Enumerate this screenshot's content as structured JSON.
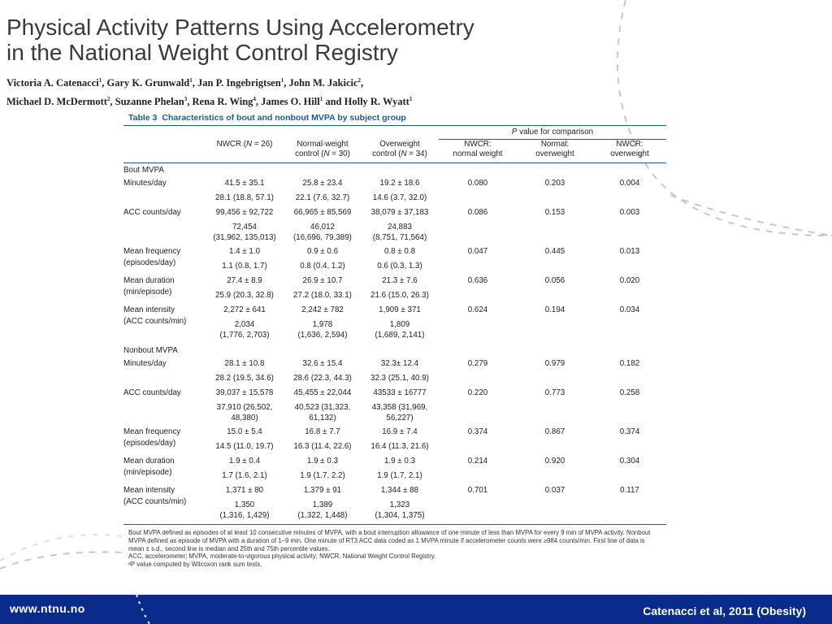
{
  "slide": {
    "title_line1": "Physical Activity Patterns Using Accelerometry",
    "title_line2": "in the National Weight Control Registry",
    "authors_line1": [
      {
        "name": "Victoria A. Catenacci",
        "sup": "1"
      },
      {
        "name": ", Gary K. Grunwald",
        "sup": "1"
      },
      {
        "name": ", Jan P. Ingebrigtsen",
        "sup": "1"
      },
      {
        "name": ", John M. Jakicic",
        "sup": "2"
      },
      {
        "name": ",",
        "sup": ""
      }
    ],
    "authors_line2": [
      {
        "name": "Michael D. McDermott",
        "sup": "2"
      },
      {
        "name": ", Suzanne Phelan",
        "sup": "3"
      },
      {
        "name": ", Rena R. Wing",
        "sup": "4"
      },
      {
        "name": ", James O. Hill",
        "sup": "1"
      },
      {
        "name": " and Holly R. Wyatt",
        "sup": "1"
      }
    ]
  },
  "table": {
    "label": "Table 3",
    "caption": "Characteristics of bout and nonbout MVPA by subject group",
    "pcomp_italic": "P",
    "pcomp_rest": " value for comparison",
    "headers": {
      "nwcr": [
        "NWCR (",
        "N",
        " = 26)"
      ],
      "normal": [
        "Normal-weight",
        "control (",
        "N",
        " = 30)"
      ],
      "over": [
        "Overweight",
        "control (",
        "N",
        " = 34)"
      ],
      "p1": [
        "NWCR:",
        "normal weight"
      ],
      "p2": [
        "Normal:",
        "overweight"
      ],
      "p3": [
        "NWCR:",
        "overweight"
      ]
    },
    "groups": [
      {
        "name": "Bout MVPA",
        "rows": [
          {
            "label": [
              "Minutes/day"
            ],
            "l1": [
              "41.5 ± 35.1",
              "25.8 ± 23.4",
              "19.2 ± 18.6"
            ],
            "p": [
              "0.080",
              "0.203",
              "0.004"
            ],
            "l2": [
              "28.1 (18.8, 57.1)",
              "22.1 (7.6, 32.7)",
              "14.6 (3.7, 32.0)"
            ]
          },
          {
            "label": [
              "ACC counts/day"
            ],
            "l1": [
              "99,456 ± 92,722",
              "66,965 ± 85,569",
              "38,079 ± 37,183"
            ],
            "p": [
              "0.086",
              "0.153",
              "0.003"
            ],
            "l2": [
              "72,454\n(31,962, 135,013)",
              "46,012\n(16,696, 79,389)",
              "24,883\n(8,751, 71,564)"
            ]
          },
          {
            "label": [
              "Mean frequency",
              "(episodes/day)"
            ],
            "l1": [
              "1.4 ± 1.0",
              "0.9 ± 0.6",
              "0.8 ± 0.8"
            ],
            "p": [
              "0.047",
              "0.445",
              "0.013"
            ],
            "l2": [
              "1.1 (0.8, 1.7)",
              "0.8 (0.4, 1.2)",
              "0.6 (0.3, 1.3)"
            ]
          },
          {
            "label": [
              "Mean duration",
              "(min/episode)"
            ],
            "l1": [
              "27.4 ± 8.9",
              "26.9 ± 10.7",
              "21.3 ± 7.6"
            ],
            "p": [
              "0.636",
              "0.056",
              "0.020"
            ],
            "l2": [
              "25.9 (20.3, 32.8)",
              "27.2 (18.0, 33.1)",
              "21.6 (15.0, 26.3)"
            ]
          },
          {
            "label": [
              "Mean intensity",
              "(ACC counts/min)"
            ],
            "l1": [
              "2,272 ± 641",
              "2,242 ± 782",
              "1,909 ± 371"
            ],
            "p": [
              "0.624",
              "0.194",
              "0.034"
            ],
            "l2": [
              "2,034\n(1,776, 2,703)",
              "1,978\n(1,636, 2,594)",
              "1,809\n(1,689, 2,141)"
            ]
          }
        ]
      },
      {
        "name": "Nonbout MVPA",
        "rows": [
          {
            "label": [
              "Minutes/day"
            ],
            "l1": [
              "28.1 ± 10.8",
              "32.6 ± 15.4",
              "32.3± 12.4"
            ],
            "p": [
              "0.279",
              "0.979",
              "0.182"
            ],
            "l2": [
              "28.2 (19.5, 34.6)",
              "28.6 (22.3, 44.3)",
              "32.3 (25.1, 40.9)"
            ]
          },
          {
            "label": [
              "ACC counts/day"
            ],
            "l1": [
              "39,037 ± 15,578",
              "45,455 ± 22,044",
              "43533 ± 16777"
            ],
            "p": [
              "0.220",
              "0.773",
              "0.258"
            ],
            "l2": [
              "37,910 (26,502,\n48,380)",
              "40,523 (31,323,\n61,132)",
              "43,358 (31,969,\n56,227)"
            ]
          },
          {
            "label": [
              "Mean frequency",
              "(episodes/day)"
            ],
            "l1": [
              "15.0 ± 5.4",
              "16.8 ± 7.7",
              "16.9 ± 7.4"
            ],
            "p": [
              "0.374",
              "0.867",
              "0.374"
            ],
            "l2": [
              "14.5 (11.0, 19.7)",
              "16.3 (11.4, 22.6)",
              "16.4 (11.3, 21.6)"
            ]
          },
          {
            "label": [
              "Mean duration",
              "(min/episode)"
            ],
            "l1": [
              "1.9 ± 0.4",
              "1.9 ± 0.3",
              "1.9 ± 0.3"
            ],
            "p": [
              "0.214",
              "0.920",
              "0.304"
            ],
            "l2": [
              "1.7 (1.6, 2.1)",
              "1.9 (1.7, 2.2)",
              "1.9 (1.7, 2.1)"
            ]
          },
          {
            "label": [
              "Mean intensity",
              "(ACC counts/min)"
            ],
            "l1": [
              "1,371 ± 80",
              "1,379 ± 91",
              "1,344 ± 88"
            ],
            "p": [
              "0.701",
              "0.037",
              "0.117"
            ],
            "l2": [
              "1,350\n(1,316, 1,429)",
              "1,389\n(1,322, 1,448)",
              "1,323\n(1,304, 1,375)"
            ]
          }
        ]
      }
    ],
    "footnotes": [
      "Bout MVPA defined as episodes of at least 10 consecutive minutes of MVPA, with a bout interruption allowance of one minute of less than MVPA for every 9 min of MVPA activity. Nonbout MVPA defined as episode of MVPA with a duration of 1–9 min. One minute of RT3 ACC data coded as 1 MVPA minute if accelerometer counts were ≥984 counts/min. First line of data is mean ± s.d., second line is median and 25th and 75th percentile values.",
      "ACC, accelerometer; MVPA, moderate-to-vigorous physical activity; NWCR, National Weight Control Registry.",
      "ᵃP value computed by Wilcoxon rank sum tests."
    ]
  },
  "footer": {
    "left": "www.ntnu.no",
    "right": "Catenacci et al, 2011 (Obesity)"
  },
  "colors": {
    "table_accent": "#1b5a9c",
    "footer_bar": "#0a2a8c"
  }
}
